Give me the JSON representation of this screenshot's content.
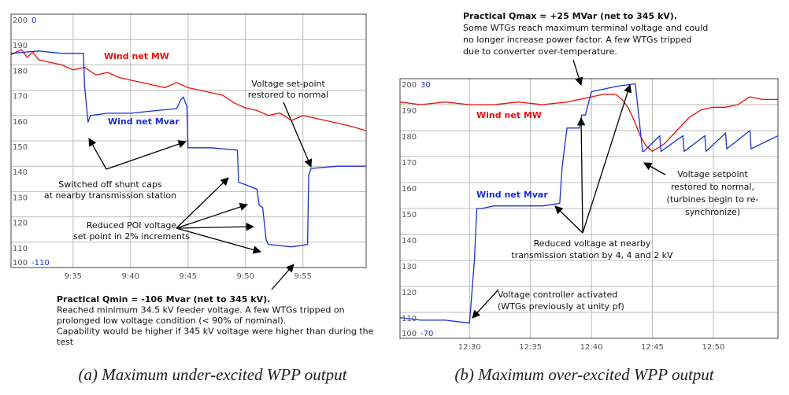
{
  "chart_data": [
    {
      "type": "line",
      "caption": "(a) Maximum under-excited WPP output",
      "grid": true,
      "xlim": [
        29.6,
        60.5
      ],
      "xticks": [
        {
          "value": 35,
          "label": "9:35"
        },
        {
          "value": 40,
          "label": "9:40"
        },
        {
          "value": 45,
          "label": "9:45"
        },
        {
          "value": 50,
          "label": "9:50"
        },
        {
          "value": 55,
          "label": "9:55"
        }
      ],
      "ylim": [
        100,
        200
      ],
      "yticks": [
        100,
        110,
        120,
        130,
        140,
        150,
        160,
        170,
        180,
        190,
        200
      ],
      "y2lim": [
        -110,
        0
      ],
      "y2ticks": [
        -110,
        0
      ],
      "series": [
        {
          "name": "Wind net MW",
          "color": "#e8120c",
          "x": [
            29.6,
            30.5,
            31,
            31.5,
            32,
            33,
            34,
            35,
            36,
            37,
            38,
            39,
            40,
            41,
            42,
            43,
            44,
            45,
            46,
            47,
            48,
            49,
            50,
            51,
            52,
            53,
            54,
            55,
            56,
            57,
            58,
            59,
            60.5
          ],
          "values": [
            184,
            186,
            183,
            185,
            182,
            181,
            180,
            178,
            179,
            176,
            177,
            175,
            174,
            173,
            172,
            171,
            173,
            171,
            170,
            169,
            168,
            165,
            163,
            162,
            160,
            161,
            158,
            160,
            159,
            158,
            157,
            156,
            154
          ]
        },
        {
          "name": "Wind net Mvar",
          "color": "#1a2fd6",
          "axis": "y2",
          "x": [
            29.6,
            32,
            34,
            35.9,
            36,
            36.3,
            36.5,
            38,
            40,
            42,
            44,
            44.4,
            44.6,
            44.9,
            45,
            47,
            49.3,
            49.4,
            50,
            51,
            51.2,
            51.5,
            51.8,
            52,
            54,
            55.4,
            55.5,
            55.7,
            58,
            60.5
          ],
          "values": [
            -17,
            -16,
            -17,
            -17,
            -31,
            -47,
            -44,
            -43,
            -43,
            -42,
            -41,
            -37,
            -36,
            -40,
            -58,
            -58,
            -59,
            -73,
            -74,
            -76,
            -83,
            -84,
            -98,
            -100,
            -101,
            -100,
            -70,
            -67,
            -66,
            -66
          ]
        }
      ],
      "annotations": [
        [
          "Switched off shunt caps",
          "at nearby transmission station"
        ],
        [
          "Voltage set-point",
          "restored to normal"
        ],
        [
          "Reduced POI voltage",
          "set point in 2% increments"
        ],
        [
          "Practical Qmin = -106 Mvar (net to 345 kV).",
          "Reached minimum 34.5 kV feeder voltage. A few WTGs tripped on",
          "prolonged low voltage condition (< 90% of nominal).",
          "Capability would be higher if 345 kV voltage were higher than during the",
          "test"
        ]
      ]
    },
    {
      "type": "line",
      "caption": "(b) Maximum over-excited WPP output",
      "grid": true,
      "xlim": [
        24.3,
        55.3
      ],
      "xticks": [
        {
          "value": 30,
          "label": "12:30"
        },
        {
          "value": 35,
          "label": "12:35"
        },
        {
          "value": 40,
          "label": "12:40"
        },
        {
          "value": 45,
          "label": "12:45"
        },
        {
          "value": 50,
          "label": "12:50"
        }
      ],
      "ylim": [
        100,
        200
      ],
      "yticks": [
        100,
        110,
        120,
        130,
        140,
        150,
        160,
        170,
        180,
        190,
        200
      ],
      "y2lim": [
        -70,
        30
      ],
      "y2ticks": [
        -70,
        30
      ],
      "series": [
        {
          "name": "Wind net MW",
          "color": "#e8120c",
          "x": [
            24.3,
            26,
            28,
            30,
            32,
            34,
            36,
            38,
            39,
            40,
            41,
            42,
            42.5,
            43,
            43.5,
            44,
            44.5,
            45,
            46,
            47,
            48,
            49,
            50,
            51,
            52,
            53,
            54,
            55.3
          ],
          "values": [
            191,
            190,
            191,
            190,
            190,
            191,
            190,
            191,
            192,
            193,
            194,
            194,
            192,
            189,
            184,
            178,
            174,
            172,
            175,
            180,
            185,
            188,
            189,
            189,
            190,
            193,
            192,
            192
          ]
        },
        {
          "name": "Wind net Mvar",
          "color": "#1a2fd6",
          "axis": "y2",
          "x": [
            24.3,
            26,
            28,
            29.8,
            30,
            30.4,
            30.6,
            31,
            32,
            34,
            36,
            37.4,
            37.6,
            38,
            39,
            39.2,
            39.5,
            40,
            41,
            42,
            43.5,
            43.6,
            44.2,
            44.3,
            45.6,
            45.7,
            47.5,
            47.6,
            49.3,
            49.4,
            51,
            51.1,
            53,
            53.1,
            55.3
          ],
          "values": [
            -62,
            -63,
            -63,
            -64,
            -64,
            -40,
            -20,
            -20,
            -19,
            -19,
            -19,
            -18,
            -4,
            11,
            11,
            16,
            16,
            25,
            26,
            27,
            28,
            28,
            2,
            2,
            8,
            2,
            8,
            2,
            8,
            2,
            9,
            3,
            10,
            3,
            8
          ]
        }
      ],
      "annotations": [
        [
          "Practical Qmax = +25 MVar (net to 345 kV).",
          "Some WTGs reach maximum terminal voltage and could",
          "no longer increase power factor. A few WTGs tripped",
          "due to converter over-temperature."
        ],
        [
          "Voltage setpoint",
          "restored to normal,",
          "(turbines begin to re-",
          "synchronize)"
        ],
        [
          "Reduced voltage at nearby",
          "transmission station by 4, 4 and 2 kV"
        ],
        [
          "Voltage controller activated",
          "(WTGs previously at unity pf)"
        ]
      ]
    }
  ]
}
